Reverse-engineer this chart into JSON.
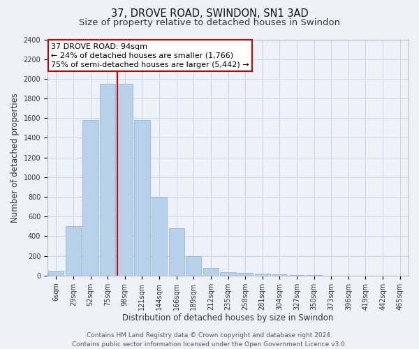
{
  "title": "37, DROVE ROAD, SWINDON, SN1 3AD",
  "subtitle": "Size of property relative to detached houses in Swindon",
  "xlabel": "Distribution of detached houses by size in Swindon",
  "ylabel": "Number of detached properties",
  "categories": [
    "6sqm",
    "29sqm",
    "52sqm",
    "75sqm",
    "98sqm",
    "121sqm",
    "144sqm",
    "166sqm",
    "189sqm",
    "212sqm",
    "235sqm",
    "258sqm",
    "281sqm",
    "304sqm",
    "327sqm",
    "350sqm",
    "373sqm",
    "396sqm",
    "419sqm",
    "442sqm",
    "465sqm"
  ],
  "values": [
    50,
    500,
    1580,
    1950,
    1950,
    1580,
    800,
    480,
    200,
    80,
    35,
    25,
    20,
    10,
    5,
    5,
    2,
    1,
    1,
    0,
    0
  ],
  "bar_color": "#b8d0ea",
  "bar_edgecolor": "#90b8d8",
  "grid_color": "#c8d4e4",
  "background_color": "#eef2f8",
  "annotation_line1": "37 DROVE ROAD: 94sqm",
  "annotation_line2": "← 24% of detached houses are smaller (1,766)",
  "annotation_line3": "75% of semi-detached houses are larger (5,442) →",
  "property_line_index": 4,
  "ylim": [
    0,
    2400
  ],
  "yticks": [
    0,
    200,
    400,
    600,
    800,
    1000,
    1200,
    1400,
    1600,
    1800,
    2000,
    2200,
    2400
  ],
  "footer_line1": "Contains HM Land Registry data © Crown copyright and database right 2024.",
  "footer_line2": "Contains public sector information licensed under the Open Government Licence v3.0.",
  "title_fontsize": 10.5,
  "subtitle_fontsize": 9.5,
  "axis_label_fontsize": 8.5,
  "tick_fontsize": 7,
  "annotation_fontsize": 8,
  "footer_fontsize": 6.5
}
